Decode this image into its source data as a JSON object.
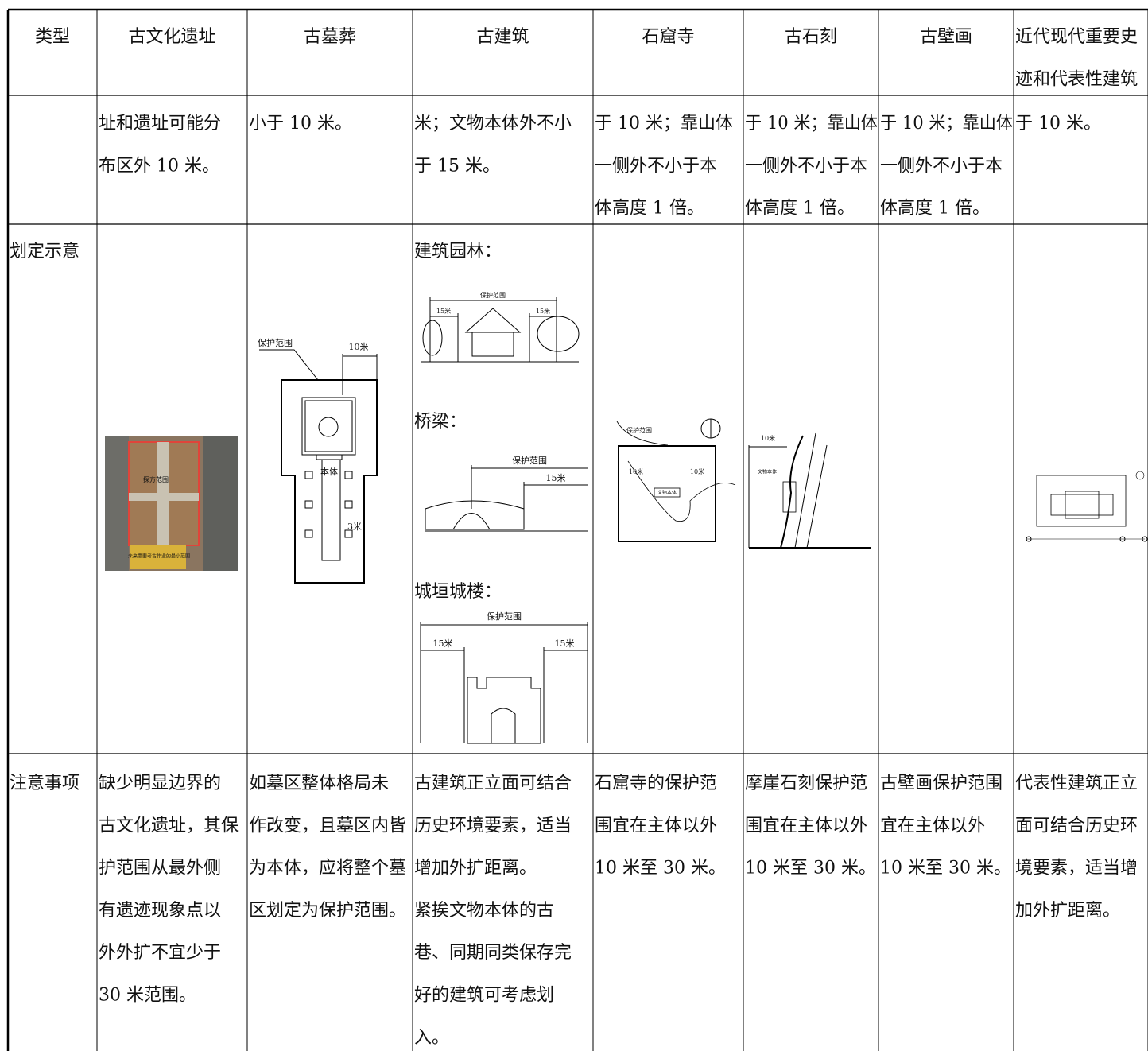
{
  "table": {
    "header": [
      [
        "类型"
      ],
      [
        "古文化遗址"
      ],
      [
        "古墓葬"
      ],
      [
        "古建筑"
      ],
      [
        "石窟寺"
      ],
      [
        "古石刻"
      ],
      [
        "古壁画"
      ],
      [
        "近代现代重要史",
        "迹和代表性建筑"
      ]
    ],
    "rows": [
      [
        [],
        [
          "址和遗址可能分",
          "布区外 10 米。"
        ],
        [
          "小于 10 米。"
        ],
        [
          "米；文物本体外不小",
          "于 15 米。"
        ],
        [
          "于 10 米；靠山体",
          "一侧外不小于本",
          "体高度 1 倍。"
        ],
        [
          "于 10 米；靠山体",
          "一侧外不小于本",
          "体高度 1 倍。"
        ],
        [
          "于 10 米；靠山体",
          "一侧外不小于本",
          "体高度 1 倍。"
        ],
        [
          "于 10 米。"
        ]
      ],
      [
        [
          "划定示意"
        ],
        [],
        [],
        [],
        [],
        [],
        [],
        []
      ],
      [
        [
          "注意事项"
        ],
        [
          "缺少明显边界的",
          "古文化遗址，其保",
          "护范围从最外侧",
          "有遗迹现象点以",
          "外外扩不宜少于",
          "30 米范围。"
        ],
        [
          "如墓区整体格局未",
          "作改变，且墓区内皆",
          "为本体，应将整个墓",
          "区划定为保护范围。"
        ],
        [
          "古建筑正立面可结合",
          "历史环境要素，适当",
          "增加外扩距离。",
          "紧挨文物本体的古",
          "巷、同期同类保存完",
          "好的建筑可考虑划",
          "入。"
        ],
        [
          "石窟寺的保护范",
          "围宜在主体以外",
          "10 米至 30 米。"
        ],
        [
          "摩崖石刻保护范",
          "围宜在主体以外",
          "10 米至 30 米。"
        ],
        [
          "古壁画保护范围",
          "宜在主体以外",
          "10 米至 30 米。"
        ],
        [
          "代表性建筑正立",
          "面可结合历史环",
          "境要素，适当增",
          "加外扩距离。"
        ]
      ]
    ]
  },
  "diagrams": {
    "site": {
      "trench": "探方范围",
      "future": "未来需要考古作业的最小范围"
    },
    "tomb": {
      "range": "保护范围",
      "distance": "10米",
      "body": "本体",
      "offset": "3米"
    },
    "building": {
      "garden": "建筑园林：",
      "bridge": "桥梁：",
      "wall": "城垣城楼：",
      "range": [
        "保护范围",
        "保护范围",
        "保护范围"
      ],
      "distance": [
        "15米",
        "15米",
        "15米",
        "15米",
        "15米"
      ]
    },
    "grotto": {
      "range": "保护范围",
      "distance": [
        "10米",
        "10米"
      ],
      "body": "文物本体"
    },
    "carving": {
      "distance": "10米",
      "body": "文物本体"
    }
  }
}
